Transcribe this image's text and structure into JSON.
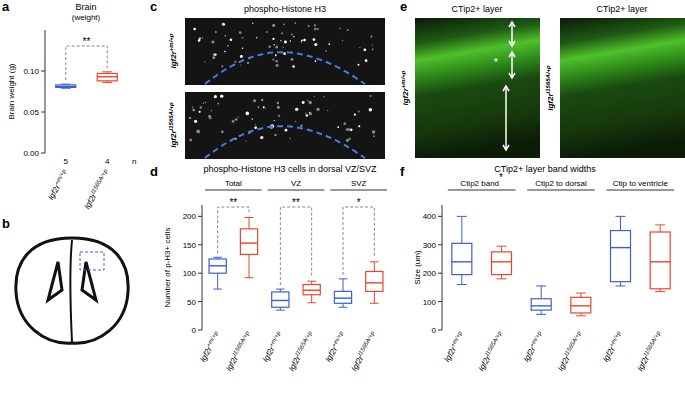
{
  "panel_labels": [
    "a",
    "b",
    "c",
    "d",
    "e",
    "f"
  ],
  "chart_data": [
    {
      "type": "box",
      "title": "Brain",
      "subtitle": "(weight)",
      "y_label": "Brain weight (g)",
      "ylim": [
        0,
        0.15
      ],
      "yticks": [
        {
          "value": 0,
          "label": "0.00"
        },
        {
          "value": 0.05,
          "label": "0.05"
        },
        {
          "value": 0.1,
          "label": "0.10"
        }
      ],
      "categories": [
        "Igf2r+m/+p",
        "Igf2rI1565A/+p"
      ],
      "colors": [
        "#3d5fcc",
        "#e8452f"
      ],
      "boxes": [
        {
          "min": 0.079,
          "q1": 0.08,
          "median": 0.081,
          "q3": 0.083,
          "max": 0.084
        },
        {
          "min": 0.086,
          "q1": 0.088,
          "median": 0.093,
          "q3": 0.097,
          "max": 0.099
        }
      ],
      "significance": "**",
      "counts": [
        5,
        4
      ],
      "counts_label": "n"
    },
    {
      "type": "box",
      "title": "phospho-Histone H3 cells in dorsal VZ/SVZ",
      "y_label": "Number of p-H3+ cells",
      "ylim": [
        0,
        220
      ],
      "yticks": [
        0,
        50,
        100,
        150,
        200
      ],
      "categories": [
        "Igf2r+m/+p",
        "Igf2rI1565A/+p",
        "Igf2r+m/+p",
        "Igf2rI1565A/+p",
        "Igf2r+m/+p",
        "Igf2rI1565A/+p"
      ],
      "colors": [
        "#3d5fcc",
        "#e8452f",
        "#3d5fcc",
        "#e8452f",
        "#3d5fcc",
        "#e8452f"
      ],
      "boxes": [
        {
          "min": 72,
          "q1": 100,
          "median": 113,
          "q3": 125,
          "max": 128
        },
        {
          "min": 92,
          "q1": 133,
          "median": 153,
          "q3": 178,
          "max": 198
        },
        {
          "min": 35,
          "q1": 40,
          "median": 52,
          "q3": 67,
          "max": 72
        },
        {
          "min": 48,
          "q1": 62,
          "median": 70,
          "q3": 80,
          "max": 86
        },
        {
          "min": 40,
          "q1": 47,
          "median": 56,
          "q3": 68,
          "max": 90
        },
        {
          "min": 47,
          "q1": 68,
          "median": 83,
          "q3": 103,
          "max": 120
        }
      ],
      "groups": [
        {
          "label": "Total",
          "significance": "**"
        },
        {
          "label": "VZ",
          "significance": "**"
        },
        {
          "label": "SVZ",
          "significance": "*"
        }
      ]
    },
    {
      "type": "box",
      "title": "CTip2+ layer band widths",
      "y_label": "Size (um)",
      "ylim": [
        0,
        440
      ],
      "yticks": [
        0,
        100,
        200,
        300,
        400
      ],
      "categories": [
        "Igf2r+m/+p",
        "Igf2rI1565A/+p",
        "Igf2r+m/+p",
        "Igf2rI1565A/+p",
        "Igf2r+m/+p",
        "Igf2rI1565A/+p"
      ],
      "colors": [
        "#3d5fcc",
        "#e8452f",
        "#3d5fcc",
        "#e8452f",
        "#3d5fcc",
        "#e8452f"
      ],
      "boxes": [
        {
          "min": 160,
          "q1": 195,
          "median": 240,
          "q3": 305,
          "max": 400
        },
        {
          "min": 180,
          "q1": 195,
          "median": 240,
          "q3": 275,
          "max": 295
        },
        {
          "min": 55,
          "q1": 70,
          "median": 85,
          "q3": 110,
          "max": 155
        },
        {
          "min": 50,
          "q1": 60,
          "median": 85,
          "q3": 115,
          "max": 130
        },
        {
          "min": 155,
          "q1": 170,
          "median": 290,
          "q3": 350,
          "max": 400
        },
        {
          "min": 135,
          "q1": 145,
          "median": 240,
          "q3": 345,
          "max": 370
        }
      ],
      "groups": [
        {
          "label": "Ctip2 band",
          "note": "*"
        },
        {
          "label": "Ctip2 to dorsal"
        },
        {
          "label": "Ctip to ventricle"
        }
      ]
    }
  ],
  "images": {
    "c": {
      "title": "phospho-Histone H3",
      "rows": [
        "Igf2r+m/+p",
        "Igf2rI1565A/+p"
      ]
    },
    "e": {
      "titles": [
        "CTip2+ layer",
        "CTip2+ layer"
      ],
      "rows": [
        "Igf2r+m/+p",
        "Igf2rI1565A/+p"
      ],
      "marker": "*"
    }
  }
}
